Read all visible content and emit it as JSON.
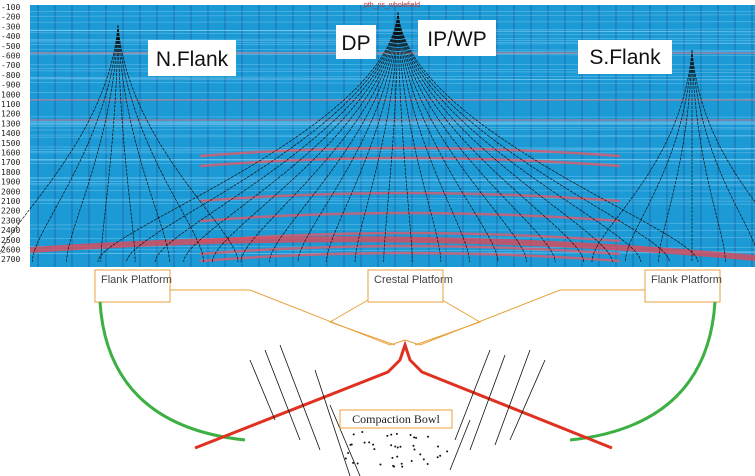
{
  "seismic": {
    "title": "pth_ns_wholefield",
    "depth_labels": [
      "-100",
      "-200",
      "-300",
      "-400",
      "-500",
      "-600",
      "-700",
      "-800",
      "-900",
      "1000",
      "1100",
      "1200",
      "1300",
      "1400",
      "1500",
      "1600",
      "1700",
      "1800",
      "1900",
      "2000",
      "2100",
      "2200",
      "2300",
      "2400",
      "2500",
      "2600",
      "2700"
    ],
    "labels": [
      "N.Flank",
      "DP",
      "IP/WP",
      "S.Flank"
    ]
  },
  "schematic": {
    "platforms": [
      "Flank Platform",
      "Crestal Platform",
      "Flank Platform"
    ],
    "bowl": "Compaction Bowl"
  }
}
